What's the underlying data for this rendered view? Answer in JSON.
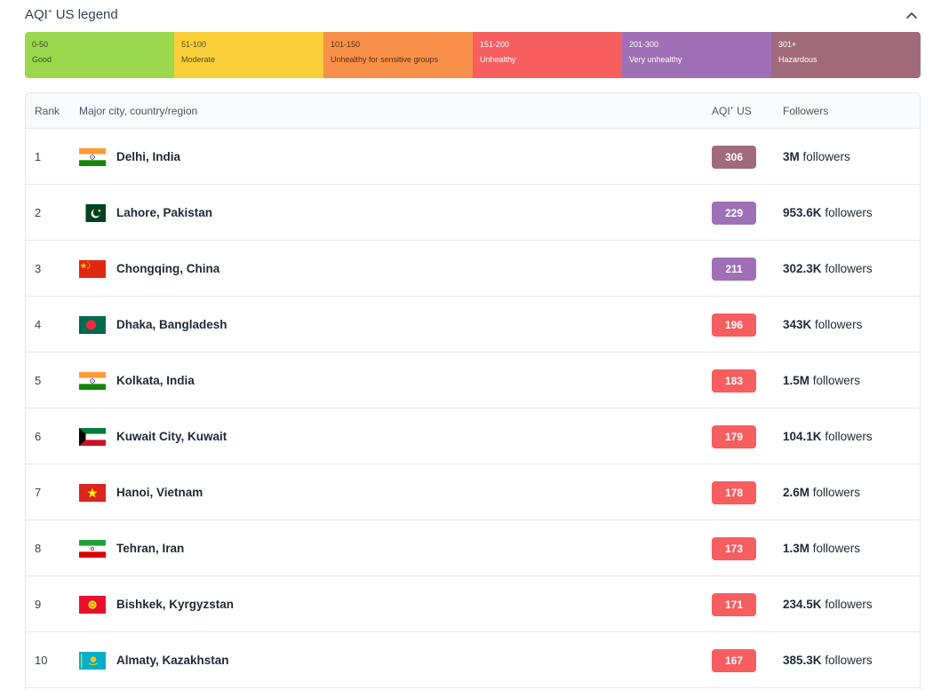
{
  "legend": {
    "title": "AQI",
    "title_sup": "+",
    "title_suffix": "US legend",
    "segments": [
      {
        "range": "0-50",
        "label": "Good",
        "color": "#9cd84e",
        "text_color": "#3d4a1f"
      },
      {
        "range": "51-100",
        "label": "Moderate",
        "color": "#facf39",
        "text_color": "#5a4a12"
      },
      {
        "range": "101-150",
        "label": "Unhealthy for sensitive groups",
        "color": "#f99049",
        "text_color": "#5c2f10"
      },
      {
        "range": "151-200",
        "label": "Unhealthy",
        "color": "#f65e5f",
        "text_color": "#ffffff"
      },
      {
        "range": "201-300",
        "label": "Very unhealthy",
        "color": "#a070b6",
        "text_color": "#ffffff"
      },
      {
        "range": "301+",
        "label": "Hazardous",
        "color": "#a06a7b",
        "text_color": "#ffffff"
      }
    ]
  },
  "table": {
    "headers": {
      "rank": "Rank",
      "city": "Major city, country/region",
      "aqi": "AQI",
      "aqi_sup": "+",
      "aqi_suffix": "US",
      "followers": "Followers"
    },
    "followers_suffix": "followers",
    "rows": [
      {
        "rank": "1",
        "city": "Delhi, India",
        "flag": "india-flag",
        "aqi": "306",
        "aqi_color": "#a06a7b",
        "followers": "3M"
      },
      {
        "rank": "2",
        "city": "Lahore, Pakistan",
        "flag": "pakistan-flag",
        "aqi": "229",
        "aqi_color": "#a070b6",
        "followers": "953.6K"
      },
      {
        "rank": "3",
        "city": "Chongqing, China",
        "flag": "china-flag",
        "aqi": "211",
        "aqi_color": "#a070b6",
        "followers": "302.3K"
      },
      {
        "rank": "4",
        "city": "Dhaka, Bangladesh",
        "flag": "bangladesh-flag",
        "aqi": "196",
        "aqi_color": "#f65e5f",
        "followers": "343K"
      },
      {
        "rank": "5",
        "city": "Kolkata, India",
        "flag": "india-flag",
        "aqi": "183",
        "aqi_color": "#f65e5f",
        "followers": "1.5M"
      },
      {
        "rank": "6",
        "city": "Kuwait City, Kuwait",
        "flag": "kuwait-flag",
        "aqi": "179",
        "aqi_color": "#f65e5f",
        "followers": "104.1K"
      },
      {
        "rank": "7",
        "city": "Hanoi, Vietnam",
        "flag": "vietnam-flag",
        "aqi": "178",
        "aqi_color": "#f65e5f",
        "followers": "2.6M"
      },
      {
        "rank": "8",
        "city": "Tehran, Iran",
        "flag": "iran-flag",
        "aqi": "173",
        "aqi_color": "#f65e5f",
        "followers": "1.3M"
      },
      {
        "rank": "9",
        "city": "Bishkek, Kyrgyzstan",
        "flag": "kyrgyzstan-flag",
        "aqi": "171",
        "aqi_color": "#f65e5f",
        "followers": "234.5K"
      },
      {
        "rank": "10",
        "city": "Almaty, Kazakhstan",
        "flag": "kazakhstan-flag",
        "aqi": "167",
        "aqi_color": "#f65e5f",
        "followers": "385.3K"
      }
    ]
  }
}
